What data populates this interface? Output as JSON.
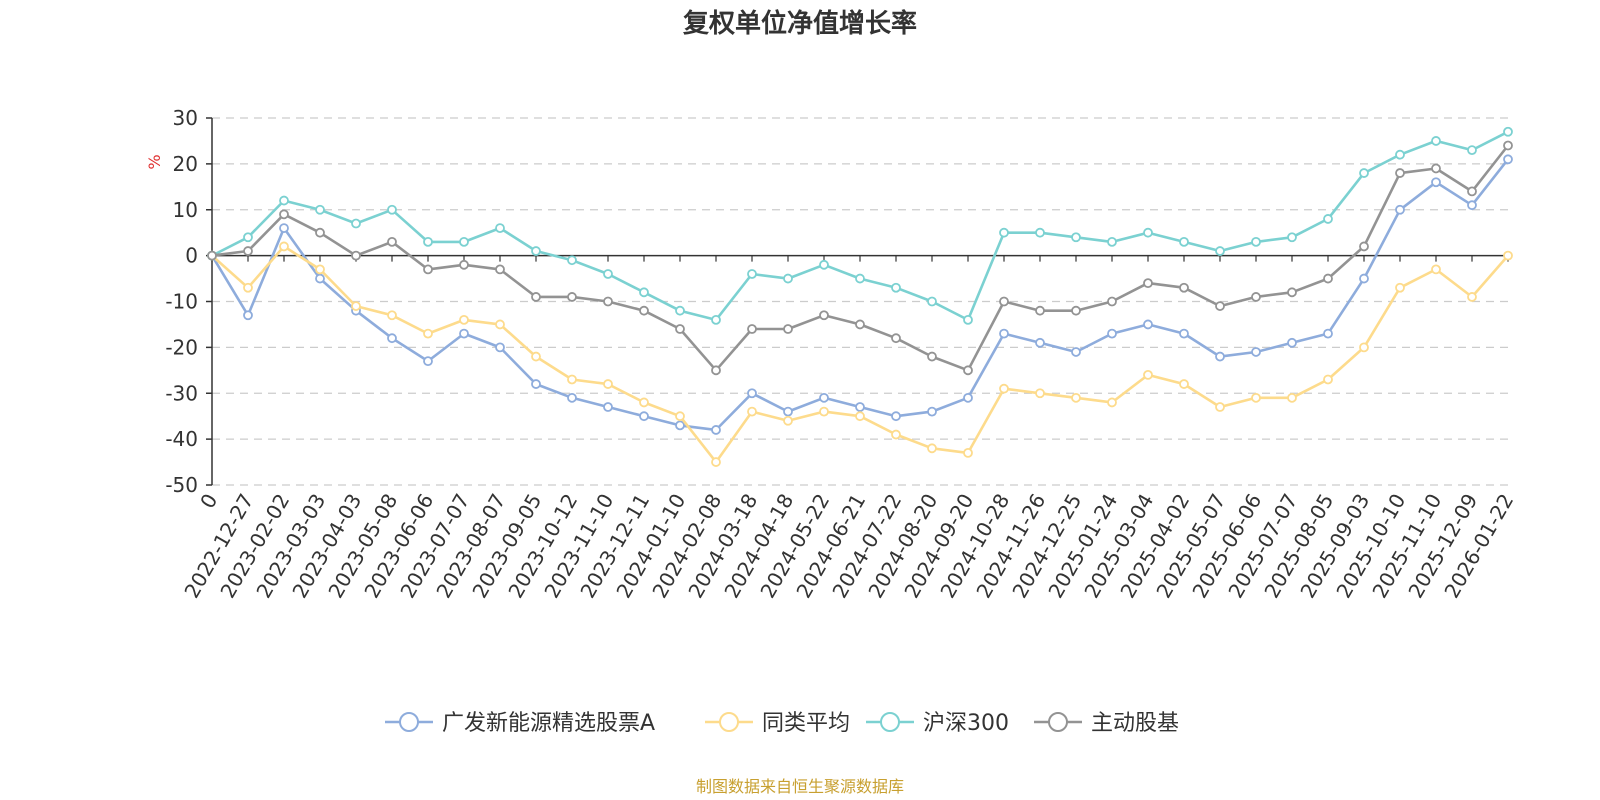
{
  "chart_data": {
    "type": "line",
    "title": "复权单位净值增长率",
    "ylabel": "%",
    "xlabel": "",
    "ylim": [
      -50,
      30
    ],
    "yticks": [
      30,
      20,
      10,
      0,
      -10,
      -20,
      -30,
      -40,
      -50
    ],
    "categories": [
      "0",
      "2022-12-27",
      "2023-02-02",
      "2023-03-03",
      "2023-04-03",
      "2023-05-08",
      "2023-06-06",
      "2023-07-07",
      "2023-08-07",
      "2023-09-05",
      "2023-10-12",
      "2023-11-10",
      "2023-12-11",
      "2024-01-10",
      "2024-02-08",
      "2024-03-18",
      "2024-04-18",
      "2024-05-22",
      "2024-06-21",
      "2024-07-22",
      "2024-08-20",
      "2024-09-20",
      "2024-10-28",
      "2024-11-26",
      "2024-12-25",
      "2025-01-24",
      "2025-03-04",
      "2025-04-02",
      "2025-05-07",
      "2025-06-06",
      "2025-07-07",
      "2025-08-05",
      "2025-09-03",
      "2025-10-10",
      "2025-11-10",
      "2025-12-09",
      "2026-01-22"
    ],
    "series": [
      {
        "name": "广发新能源精选股票A",
        "color": "#8eacdc",
        "values": [
          0,
          -13,
          6,
          -5,
          -12,
          -18,
          -23,
          -17,
          -20,
          -28,
          -31,
          -33,
          -35,
          -37,
          -38,
          -30,
          -34,
          -31,
          -33,
          -35,
          -34,
          -31,
          -17,
          -19,
          -21,
          -17,
          -15,
          -17,
          -22,
          -21,
          -19,
          -17,
          -5,
          10,
          16,
          11,
          21
        ]
      },
      {
        "name": "同类平均",
        "color": "#fddb8c",
        "values": [
          0,
          -7,
          2,
          -3,
          -11,
          -13,
          -17,
          -14,
          -15,
          -22,
          -27,
          -28,
          -32,
          -35,
          -45,
          -34,
          -36,
          -34,
          -35,
          -39,
          -42,
          -43,
          -29,
          -30,
          -31,
          -32,
          -26,
          -28,
          -33,
          -31,
          -31,
          -27,
          -20,
          -7,
          -3,
          -9,
          0
        ]
      },
      {
        "name": "沪深300",
        "color": "#7bd1d1",
        "values": [
          0,
          4,
          12,
          10,
          7,
          10,
          3,
          3,
          6,
          1,
          -1,
          -4,
          -8,
          -12,
          -14,
          -4,
          -5,
          -2,
          -5,
          -7,
          -10,
          -14,
          5,
          5,
          4,
          3,
          5,
          3,
          1,
          3,
          4,
          8,
          18,
          22,
          25,
          23,
          27
        ]
      },
      {
        "name": "主动股基",
        "color": "#939393",
        "values": [
          0,
          1,
          9,
          5,
          0,
          3,
          -3,
          -2,
          -3,
          -9,
          -9,
          -10,
          -12,
          -16,
          -25,
          -16,
          -16,
          -13,
          -15,
          -18,
          -22,
          -25,
          -10,
          -12,
          -12,
          -10,
          -6,
          -7,
          -11,
          -9,
          -8,
          -5,
          2,
          18,
          19,
          14,
          24
        ]
      }
    ],
    "legend_position": "bottom-center",
    "grid": true
  },
  "footer": {
    "source": "制图数据来自恒生聚源数据库"
  }
}
